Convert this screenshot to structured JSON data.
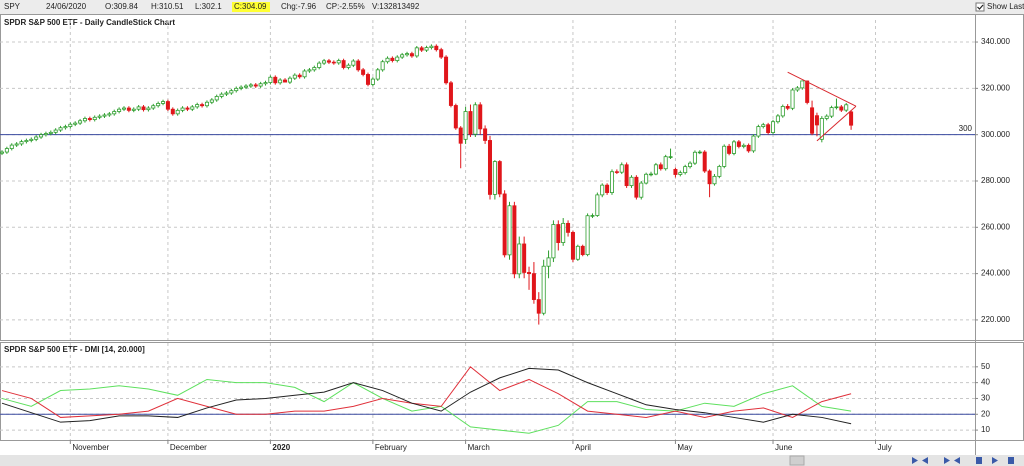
{
  "header": {
    "symbol": "SPY",
    "date": "24/06/2020",
    "open": "O:309.84",
    "high": "H:310.51",
    "low": "L:302.1",
    "close": "C:304.09",
    "change": "Chg:-7.96",
    "change_pct": "CP:-2.55%",
    "volume": "V:132813492",
    "show_last": "Show Last"
  },
  "chart_data": [
    {
      "type": "candlestick",
      "title": "SPDR S&P 500 ETF - Daily CandleStick Chart",
      "up_color": "#2e9e2e",
      "down_color": "#e0161b",
      "xlim": [
        -0.41,
        199.39
      ],
      "xticks": [
        {
          "value": 14,
          "label": "November"
        },
        {
          "value": 34,
          "label": "December"
        },
        {
          "value": 55,
          "label": "2020"
        },
        {
          "value": 76,
          "label": "February"
        },
        {
          "value": 95,
          "label": "March"
        },
        {
          "value": 117,
          "label": "April"
        },
        {
          "value": 138,
          "label": "May"
        },
        {
          "value": 158,
          "label": "June"
        },
        {
          "value": 179,
          "label": "July"
        }
      ],
      "ylim": [
        212.2,
        345.2
      ],
      "yticks": [
        {
          "value": 220,
          "label": "220.000"
        },
        {
          "value": 240,
          "label": "240.000"
        },
        {
          "value": 260,
          "label": "260.000"
        },
        {
          "value": 280,
          "label": "280.000"
        },
        {
          "value": 300,
          "label": "300.000"
        },
        {
          "value": 320,
          "label": "320.000"
        },
        {
          "value": 340,
          "label": "340.000"
        }
      ],
      "grid": true,
      "reference_line": {
        "value": 300,
        "color": "#3a4aa0"
      },
      "trendlines": {
        "color": "#d9282e",
        "lines": [
          [
            [
              161,
              327
            ],
            [
              175,
              312.3
            ]
          ],
          [
            [
              167,
              297.3
            ],
            [
              175,
              312.3
            ]
          ]
        ]
      },
      "open": [
        292,
        292.5,
        294,
        295.5,
        296,
        297,
        297.5,
        298,
        299,
        300,
        300.5,
        301,
        302,
        303,
        303.5,
        304.5,
        305,
        306,
        307,
        306.5,
        307.5,
        308,
        308.5,
        309,
        310,
        311,
        311.5,
        310.5,
        311,
        312,
        310.8,
        311.5,
        312.5,
        313.5,
        314.3,
        311,
        309,
        310.5,
        311.5,
        311,
        312,
        313,
        312.5,
        314,
        315,
        316.5,
        317.5,
        318,
        319,
        320,
        320.5,
        321,
        321.5,
        321,
        322,
        322.5,
        324.8,
        322.4,
        323.6,
        322.7,
        324.4,
        325.7,
        325,
        327.5,
        328,
        329,
        330.9,
        331.9,
        331.3,
        331,
        332,
        329,
        330,
        331.8,
        328,
        326,
        321.7,
        324,
        328,
        331.5,
        333,
        332,
        333.5,
        334.5,
        335,
        334,
        337.5,
        336.5,
        337.6,
        338.2,
        336.7,
        333.5,
        322.4,
        312.6,
        302.9,
        298,
        310,
        300.2,
        312.9,
        302.5,
        297.5,
        274.2,
        288.4,
        274.4,
        248.1,
        269.3,
        239.9,
        252.8,
        240.5,
        240,
        228.8,
        222.9,
        243.2,
        246.8,
        261.2,
        253.4,
        261.7,
        257.8,
        246.2,
        251.8,
        248.2,
        265,
        265.1,
        274,
        278.2,
        275,
        284,
        283.8,
        287,
        278,
        281.6,
        273,
        279.1,
        282.9,
        283,
        287,
        285.3,
        290.5,
        285,
        282.8,
        283.6,
        286.2,
        287.7,
        292.4,
        292.5,
        284.3,
        278.8,
        282,
        286.3,
        295,
        291.9,
        296.9,
        294.9,
        295.4,
        293,
        299.4,
        303.5,
        304.3,
        300.9,
        305.6,
        308.1,
        312.2,
        311.4,
        319.3,
        320.2,
        323.2,
        311.6,
        308.2,
        298,
        307,
        308,
        311.7,
        312,
        310.6,
        309.84
      ],
      "high": [
        293.3,
        294.8,
        296.3,
        296.8,
        297.8,
        298.3,
        298.8,
        299.8,
        300.8,
        301.3,
        301.8,
        302.8,
        303.8,
        304.3,
        305.3,
        305.8,
        306.8,
        307.8,
        307.8,
        308.3,
        308.8,
        309.3,
        309.8,
        310.8,
        311.8,
        312.3,
        312.3,
        311.8,
        312.8,
        312.8,
        312.3,
        313.3,
        314.3,
        315.1,
        315.1,
        311.8,
        311.3,
        312.3,
        312.3,
        312.8,
        313.8,
        313.8,
        314.8,
        315.8,
        317.3,
        318.3,
        318.8,
        319.8,
        320.8,
        321.3,
        321.8,
        322.3,
        322.3,
        322.8,
        323.3,
        325.6,
        325.6,
        324.4,
        324.4,
        325.2,
        326.5,
        326.5,
        328.3,
        328.8,
        329.8,
        331.7,
        332.7,
        332.7,
        332.1,
        332.8,
        332.8,
        330.8,
        332.6,
        332.6,
        328.8,
        326.8,
        324.8,
        328.8,
        332.3,
        333.8,
        333.8,
        334.3,
        335.3,
        335.8,
        335.8,
        338.3,
        338.3,
        338.4,
        339,
        339,
        337.5,
        334.3,
        323.2,
        313.4,
        303.7,
        312,
        313,
        314,
        314,
        304,
        299.5,
        289,
        289,
        276,
        271,
        271,
        256,
        256,
        243,
        245,
        232,
        246,
        250,
        263,
        263,
        264,
        263,
        258.5,
        252.5,
        252.5,
        266,
        266,
        275,
        279,
        279,
        285,
        285,
        288,
        288,
        282.5,
        282.5,
        280,
        283.6,
        284,
        287.8,
        288,
        291.3,
        294,
        285.8,
        284.5,
        287,
        288.5,
        293.2,
        293.3,
        293.3,
        285,
        283,
        287,
        295.8,
        296,
        297.7,
        297.7,
        296.2,
        296.2,
        300.2,
        304.3,
        305.1,
        305.1,
        306.4,
        308.9,
        313,
        313.2,
        320.1,
        321,
        323.4,
        323.4,
        314.7,
        309.5,
        308,
        308.8,
        312.5,
        315.6,
        312.8,
        313.7,
        310.51
      ],
      "low": [
        291.2,
        291.7,
        293.2,
        294.7,
        295.2,
        296.2,
        296.7,
        297.2,
        298.2,
        299.2,
        299.7,
        300.2,
        301.2,
        302.2,
        302.7,
        303.7,
        304.2,
        305.2,
        305.7,
        305.7,
        306.7,
        307.2,
        307.7,
        308.2,
        309.2,
        310.2,
        309.7,
        309.7,
        310.2,
        310,
        310,
        310.7,
        311.7,
        312.7,
        310.2,
        308.2,
        308.2,
        309.7,
        310.2,
        310.2,
        311.2,
        311.7,
        311.7,
        313.2,
        314.2,
        315.7,
        316.7,
        317.2,
        318.2,
        319.2,
        319.7,
        320.2,
        320.2,
        320.2,
        321.2,
        321.7,
        321.6,
        321.6,
        322.8,
        321.9,
        323.6,
        324.2,
        324.2,
        326.7,
        327.2,
        328.2,
        330.1,
        330.5,
        330.2,
        330.2,
        328.2,
        328.2,
        329.2,
        327.2,
        325.2,
        320.9,
        320.9,
        323.2,
        327.2,
        330.7,
        331.2,
        331.2,
        332.7,
        333.7,
        333.2,
        333.2,
        335.7,
        335.7,
        336.8,
        335.9,
        332.7,
        321.6,
        311.8,
        302.1,
        285.5,
        296,
        299,
        299,
        300,
        296,
        272,
        272,
        273,
        247,
        246,
        238,
        238,
        238,
        233,
        227,
        218,
        222,
        238,
        245,
        250,
        252,
        256,
        245,
        245.5,
        247.5,
        247.5,
        264,
        264.5,
        273,
        274,
        274,
        283,
        283,
        277,
        277,
        272,
        272,
        278.5,
        282,
        282.5,
        284.5,
        284.5,
        289.5,
        281.5,
        282,
        282.8,
        285.4,
        286.9,
        291.6,
        283.5,
        273,
        278,
        281.2,
        285.5,
        291.1,
        291.1,
        294.1,
        294.1,
        292.2,
        292.2,
        298.6,
        302.7,
        300.1,
        300.1,
        304.8,
        307.3,
        310.6,
        310.6,
        318.5,
        319.4,
        313.1,
        299.8,
        299.3,
        296.7,
        306.2,
        307.2,
        310.9,
        309.8,
        309.8,
        302.1
      ],
      "close": [
        292.5,
        294,
        295.5,
        296,
        297,
        297.5,
        298,
        299,
        300,
        300.5,
        301,
        302,
        303,
        303.5,
        304.5,
        305,
        306,
        307,
        306.5,
        307.5,
        308,
        308.5,
        309,
        310,
        311,
        311.5,
        310.5,
        311,
        312,
        310.8,
        311.5,
        312.5,
        313.5,
        314.3,
        311,
        309,
        310.5,
        311.5,
        311,
        312,
        313,
        312.5,
        314,
        315,
        316.5,
        317.5,
        318,
        319,
        320,
        320.5,
        321,
        321.5,
        321,
        322,
        322.5,
        324.8,
        322.4,
        323.6,
        322.7,
        324.4,
        325.7,
        325,
        327.5,
        328,
        329,
        330.9,
        331.9,
        331.3,
        331,
        332,
        329,
        330,
        331.8,
        328,
        326,
        321.7,
        324,
        328,
        331.5,
        333,
        332,
        333.5,
        334.5,
        335,
        334,
        337.5,
        336.5,
        337.6,
        338.2,
        336.7,
        333.5,
        322.4,
        312.6,
        302.9,
        296.3,
        310,
        300.2,
        312.9,
        302.5,
        297.5,
        274.2,
        288.4,
        274.4,
        248.1,
        269.3,
        239.9,
        252.8,
        240.5,
        240,
        228.8,
        222.9,
        243.2,
        246.8,
        261.2,
        253.4,
        261.7,
        257.8,
        246.2,
        251.8,
        248.2,
        265,
        265.1,
        274,
        278.2,
        275,
        284,
        283.8,
        287,
        278,
        281.6,
        273,
        279.1,
        282.9,
        283,
        287,
        285.3,
        290.5,
        290.5,
        282.8,
        283.6,
        286.2,
        287.7,
        292.4,
        292.5,
        284.3,
        278.8,
        282,
        286.3,
        295,
        291.9,
        296.9,
        294.9,
        295.4,
        293,
        299.4,
        303.5,
        304.3,
        300.9,
        305.6,
        308.1,
        312.2,
        311.4,
        319.3,
        320.2,
        323.2,
        313.9,
        300.6,
        304.2,
        307,
        308,
        311.7,
        312,
        310.6,
        312.9,
        304.09
      ]
    },
    {
      "type": "line",
      "title": "SPDR S&P 500 ETF - DMI [14, 20.000]",
      "xlim": [
        -0.41,
        199.39
      ],
      "x": [
        0,
        6,
        12,
        18,
        24,
        30,
        36,
        42,
        48,
        54,
        60,
        66,
        72,
        78,
        84,
        90,
        96,
        102,
        108,
        114,
        120,
        126,
        132,
        138,
        144,
        150,
        156,
        162,
        168,
        174
      ],
      "ylim": [
        5,
        60
      ],
      "yticks": [
        10,
        20,
        30,
        40,
        50
      ],
      "grid": true,
      "reference_line": {
        "value": 20,
        "color": "#3a4aa0"
      },
      "series": [
        {
          "color": "#5ee05e",
          "values": [
            30,
            25,
            35,
            36,
            38,
            36,
            32,
            42,
            40,
            40,
            37,
            28,
            40,
            30,
            22,
            25,
            12,
            10,
            8,
            13,
            28,
            28,
            23,
            22,
            27,
            25,
            33,
            38,
            25,
            22
          ]
        },
        {
          "color": "#e0303a",
          "values": [
            35,
            30,
            18,
            19,
            20,
            22,
            30,
            25,
            20,
            20,
            22,
            22,
            25,
            30,
            27,
            25,
            50,
            35,
            42,
            33,
            22,
            20,
            18,
            22,
            18,
            22,
            24,
            18,
            28,
            33
          ]
        },
        {
          "color": "#222222",
          "values": [
            27,
            21,
            15,
            16,
            19,
            19,
            18,
            24,
            29,
            30,
            32,
            34,
            40,
            35,
            27,
            22,
            34,
            43,
            49,
            48,
            40,
            33,
            26,
            23,
            21,
            18,
            15,
            20,
            18,
            14
          ]
        }
      ]
    }
  ]
}
